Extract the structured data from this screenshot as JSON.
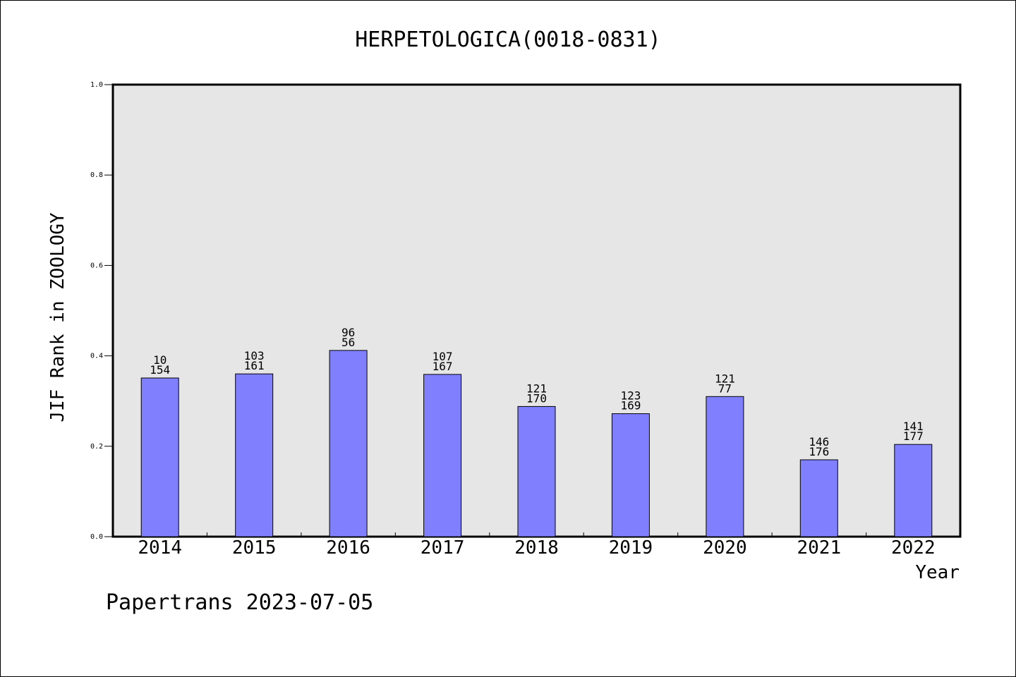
{
  "chart_data": {
    "type": "bar",
    "title": "HERPETOLOGICA(0018-0831)",
    "xlabel": "Year",
    "ylabel": "JIF Rank in ZOOLOGY",
    "ylim": [
      0.0,
      1.0
    ],
    "yticks": [
      "0.0",
      "0.2",
      "0.4",
      "0.6",
      "0.8",
      "1.0"
    ],
    "grid": false,
    "categories": [
      "2014",
      "2015",
      "2016",
      "2017",
      "2018",
      "2019",
      "2020",
      "2021",
      "2022"
    ],
    "values": [
      0.351,
      0.36,
      0.412,
      0.359,
      0.288,
      0.272,
      0.31,
      0.17,
      0.204
    ],
    "labels_top": [
      "10",
      "103",
      "96",
      "107",
      "121",
      "123",
      "121",
      "146",
      "141"
    ],
    "labels_bottom": [
      "154",
      "161",
      "56",
      "167",
      "170",
      "169",
      "77",
      "176",
      "177"
    ],
    "colors": {
      "bar": "#8080ff",
      "plot_background": "#e6e6e6"
    }
  },
  "footer": {
    "text": "Papertrans 2023-07-05"
  }
}
